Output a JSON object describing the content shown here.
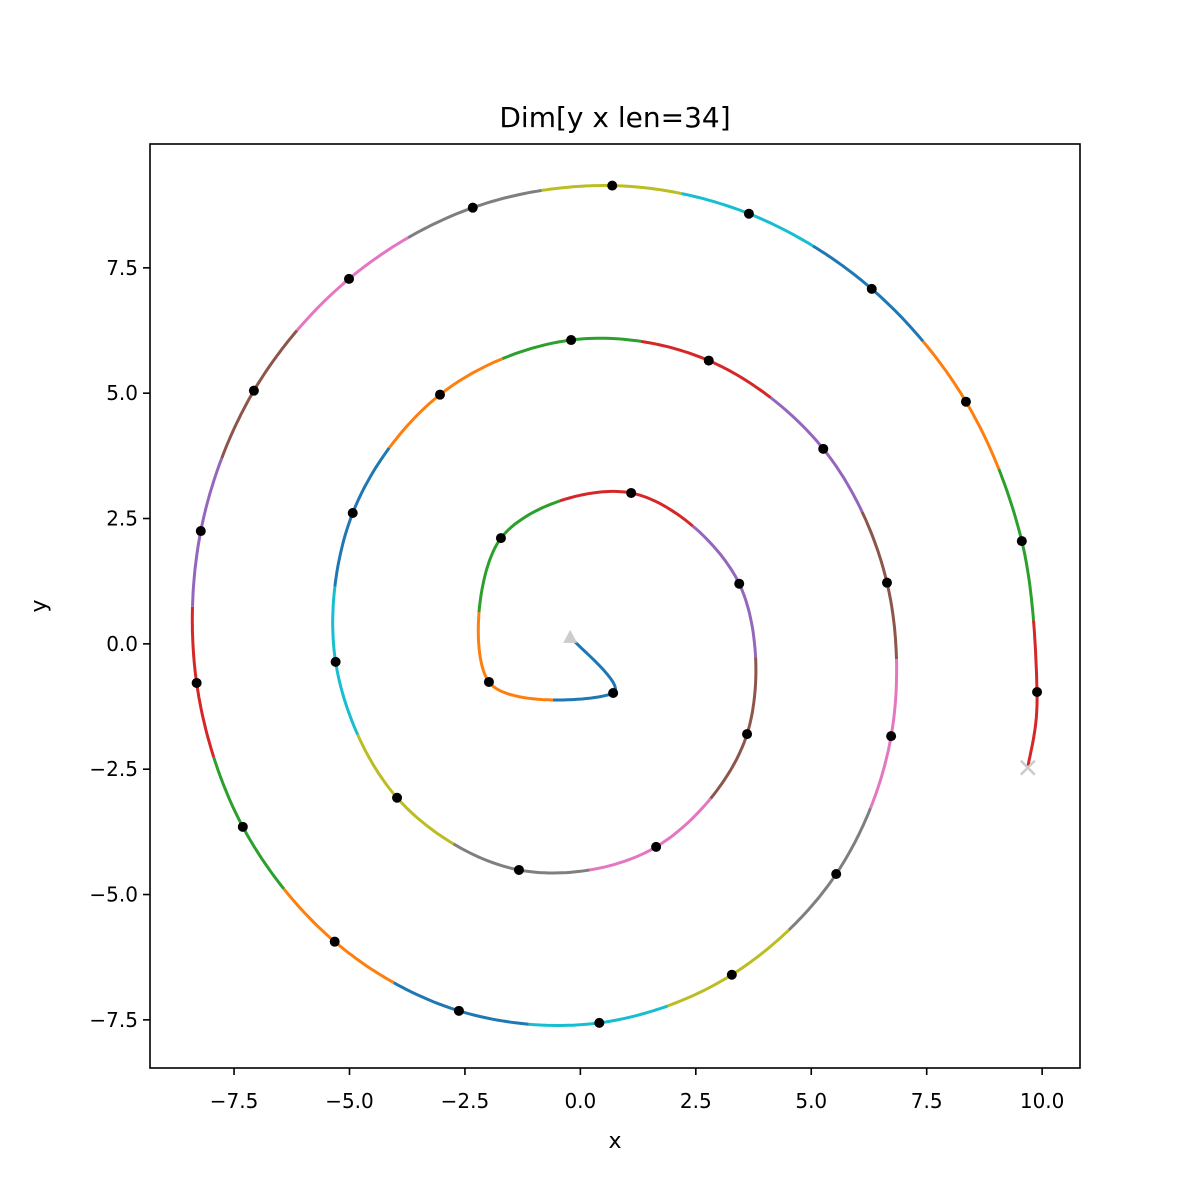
{
  "chart_data": {
    "type": "spiral",
    "title": "Dim[y x len=34]",
    "xlabel": "x",
    "ylabel": "y",
    "x": [
      0.71,
      -1.98,
      -1.72,
      1.1,
      3.44,
      3.61,
      1.64,
      -1.33,
      -3.97,
      -5.3,
      -4.93,
      -3.04,
      -0.2,
      2.78,
      5.26,
      6.64,
      6.73,
      5.54,
      3.28,
      0.41,
      -2.63,
      -5.32,
      -7.31,
      -8.31,
      -8.22,
      -7.07,
      -5.01,
      -2.33,
      0.69,
      3.65,
      6.31,
      8.35,
      9.56,
      9.89
    ],
    "y": [
      -0.98,
      -0.76,
      2.11,
      3.01,
      1.2,
      -1.8,
      -4.05,
      -4.51,
      -3.07,
      -0.36,
      2.61,
      4.97,
      6.06,
      5.65,
      3.89,
      1.22,
      -1.84,
      -4.59,
      -6.6,
      -7.56,
      -7.32,
      -5.94,
      -3.65,
      -0.78,
      2.25,
      5.05,
      7.28,
      8.7,
      9.14,
      8.58,
      7.08,
      4.83,
      2.05,
      -0.96
    ],
    "start": [
      -0.22,
      0.14
    ],
    "end": [
      9.69,
      -2.47
    ],
    "colors": [
      "#1f77b4",
      "#ff7f0e",
      "#2ca02c",
      "#d62728",
      "#9467bd",
      "#8c564b",
      "#e377c2",
      "#7f7f7f",
      "#bcbd22",
      "#17becf"
    ],
    "point_color": "#000000",
    "marker_color": "#cccccc",
    "xlim": [
      -9.32,
      10.82
    ],
    "ylim": [
      -8.46,
      9.97
    ],
    "xticks": [
      {
        "value": -7.5,
        "label": "−7.5"
      },
      {
        "value": -5,
        "label": "−5.0"
      },
      {
        "value": -2.5,
        "label": "−2.5"
      },
      {
        "value": 0,
        "label": "0.0"
      },
      {
        "value": 2.5,
        "label": "2.5"
      },
      {
        "value": 5,
        "label": "5.0"
      },
      {
        "value": 7.5,
        "label": "7.5"
      },
      {
        "value": 10,
        "label": "10.0"
      }
    ],
    "yticks": [
      {
        "value": -7.5,
        "label": "−7.5"
      },
      {
        "value": -5,
        "label": "−5.0"
      },
      {
        "value": -2.5,
        "label": "−2.5"
      },
      {
        "value": 0,
        "label": "0.0"
      },
      {
        "value": 2.5,
        "label": "2.5"
      },
      {
        "value": 5,
        "label": "5.0"
      },
      {
        "value": 7.5,
        "label": "7.5"
      }
    ]
  }
}
